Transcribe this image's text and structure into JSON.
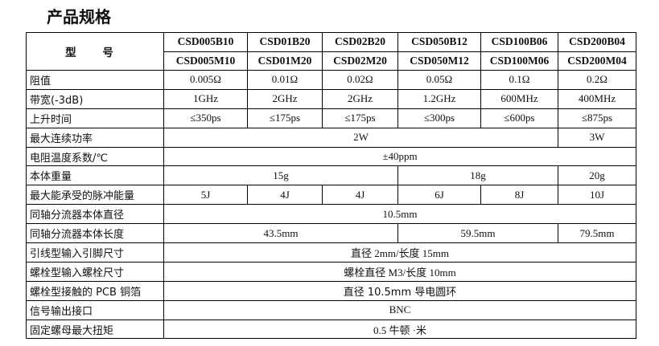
{
  "title": "产品规格",
  "header": {
    "label": "型 号",
    "models": [
      [
        "CSD005B10",
        "CSD005M10"
      ],
      [
        "CSD01B20",
        "CSD01M20"
      ],
      [
        "CSD02B20",
        "CSD02M20"
      ],
      [
        "CSD050B12",
        "CSD050M12"
      ],
      [
        "CSD100B06",
        "CSD100M06"
      ],
      [
        "CSD200B04",
        "CSD200M04"
      ]
    ]
  },
  "rows": {
    "resistance": {
      "label": "阻值",
      "values": [
        "0.005Ω",
        "0.01Ω",
        "0.02Ω",
        "0.05Ω",
        "0.1Ω",
        "0.2Ω"
      ]
    },
    "bandwidth": {
      "label": "带宽(-3dB)",
      "values": [
        "1GHz",
        "2GHz",
        "2GHz",
        "1.2GHz",
        "600MHz",
        "400MHz"
      ]
    },
    "rise_time": {
      "label": "上升时间",
      "values": [
        "≤350ps",
        "≤175ps",
        "≤175ps",
        "≤300ps",
        "≤600ps",
        "≤875ps"
      ]
    },
    "max_power": {
      "label": "最大连续功率",
      "values": [
        "2W",
        "3W"
      ]
    },
    "temp_coeff": {
      "label": "电阻温度系数/℃",
      "value": "±40ppm"
    },
    "weight": {
      "label": "本体重量",
      "values": [
        "15g",
        "18g",
        "20g"
      ]
    },
    "pulse_energy": {
      "label": "最大能承受的脉冲能量",
      "values": [
        "5J",
        "4J",
        "4J",
        "6J",
        "8J",
        "10J"
      ]
    },
    "diameter": {
      "label": "同轴分流器本体直径",
      "value": "10.5mm"
    },
    "length": {
      "label": "同轴分流器本体长度",
      "values": [
        "43.5mm",
        "59.5mm",
        "79.5mm"
      ]
    },
    "lead_pin": {
      "label": "引线型输入引脚尺寸",
      "value": "直径 2mm/长度 15mm"
    },
    "bolt_size": {
      "label": "螺栓型输入螺栓尺寸",
      "value": "螺栓直径 M3/长度 10mm"
    },
    "pcb_foil": {
      "label": "螺栓型接触的 PCB 铜箔",
      "value": "直径 10.5mm 导电圆环"
    },
    "output": {
      "label": "信号输出接口",
      "value": "BNC"
    },
    "torque": {
      "label": "固定螺母最大扭矩",
      "value": "0.5 牛顿 ·米"
    }
  }
}
